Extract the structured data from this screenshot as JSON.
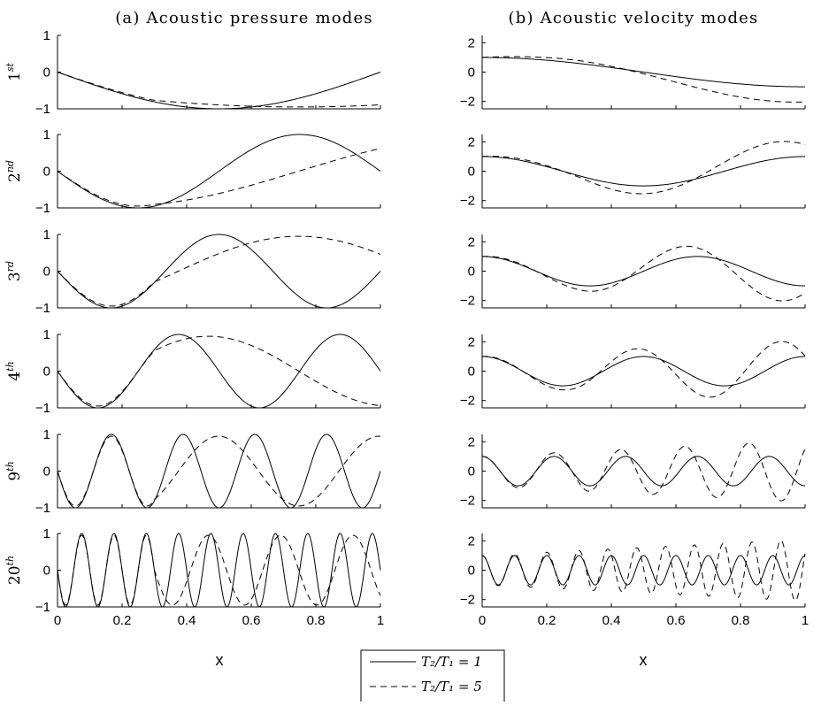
{
  "figure": {
    "left_title": "(a) Acoustic pressure modes",
    "right_title": "(b) Acoustic velocity modes",
    "x_axis_label": "x"
  },
  "legend": {
    "solid_label": "T₂/T₁ = 1",
    "dashed_label": "T₂/T₁ = 5"
  },
  "chart_data": [
    {
      "type": "line",
      "panel": "pressure",
      "row_labels": [
        {
          "base": "1",
          "sup": "st"
        },
        {
          "base": "2",
          "sup": "nd"
        },
        {
          "base": "3",
          "sup": "rd"
        },
        {
          "base": "4",
          "sup": "th"
        },
        {
          "base": "9",
          "sup": "th"
        },
        {
          "base": "20",
          "sup": "th"
        }
      ],
      "xlim": [
        0,
        1
      ],
      "ylim": [
        -1,
        1
      ],
      "yticks": [
        "-1",
        "0",
        "1"
      ],
      "xticks": [
        "0",
        "0.2",
        "0.4",
        "0.6",
        "0.8",
        "1"
      ],
      "mode_numbers": [
        1,
        2,
        3,
        4,
        9,
        20
      ],
      "series": [
        {
          "style": "solid",
          "formula": "-sin(n*pi*x)",
          "temperature_ratio": 1
        },
        {
          "style": "dashed",
          "formula": "pressure mode with T2/T1 = 5 (piecewise medium)",
          "temperature_ratio": 5
        }
      ]
    },
    {
      "type": "line",
      "panel": "velocity",
      "row_labels": [
        {
          "base": "1",
          "sup": "st"
        },
        {
          "base": "2",
          "sup": "nd"
        },
        {
          "base": "3",
          "sup": "rd"
        },
        {
          "base": "4",
          "sup": "th"
        },
        {
          "base": "9",
          "sup": "th"
        },
        {
          "base": "20",
          "sup": "th"
        }
      ],
      "xlim": [
        0,
        1
      ],
      "ylim": [
        -2.5,
        2.5
      ],
      "yticks": [
        "-2",
        "0",
        "2"
      ],
      "xticks": [
        "0",
        "0.2",
        "0.4",
        "0.6",
        "0.8",
        "1"
      ],
      "mode_numbers": [
        1,
        2,
        3,
        4,
        9,
        20
      ],
      "series": [
        {
          "style": "solid",
          "formula": "cos(n*pi*x)",
          "temperature_ratio": 1
        },
        {
          "style": "dashed",
          "formula": "velocity mode with T2/T1 = 5 (amplitude grows toward x=1)",
          "temperature_ratio": 5
        }
      ]
    }
  ]
}
